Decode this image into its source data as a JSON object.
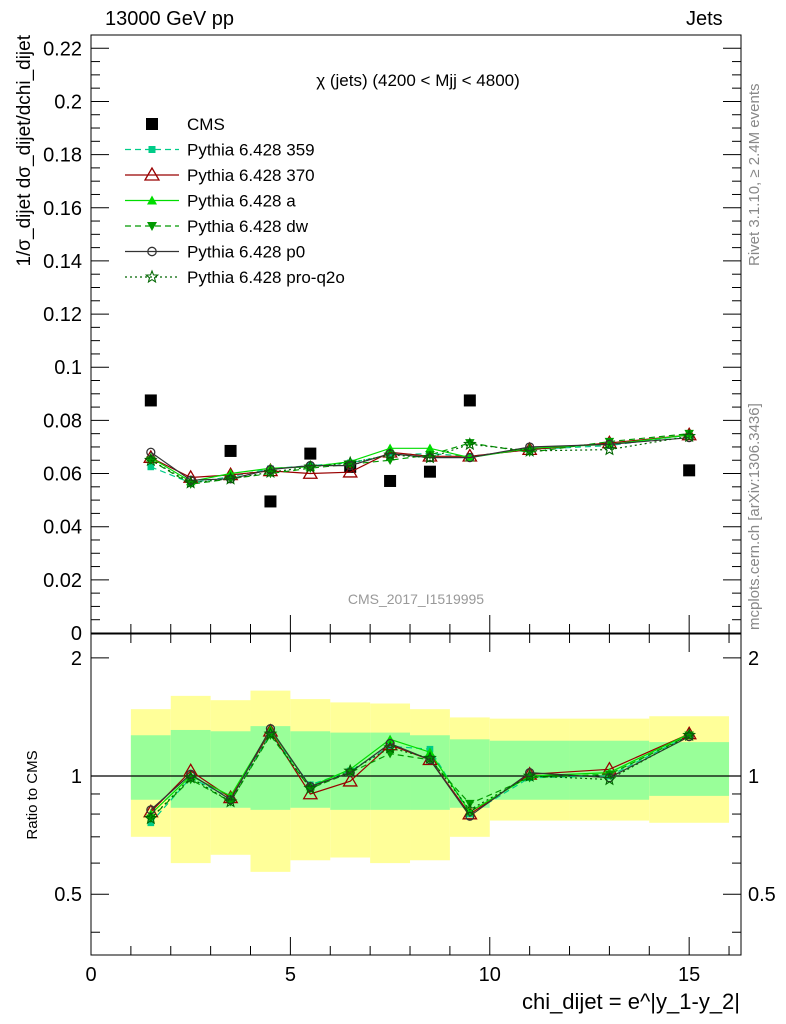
{
  "header": {
    "left_title": "13000 GeV pp",
    "right_title": "Jets"
  },
  "side_labels": {
    "rivet": "Rivet 3.1.10, ≥ 2.4M events",
    "mcplots": "mcplots.cern.ch [arXiv:1306.3436]"
  },
  "colors": {
    "cms": "#000000",
    "359": "#00cc88",
    "370": "#990000",
    "a": "#00dd00",
    "dw": "#009900",
    "p0": "#333333",
    "pro_q2o": "#006600",
    "band_inner": "#99ff99",
    "band_outer": "#ffff99"
  },
  "chart_data": [
    {
      "type": "scatter",
      "panel": "main",
      "title": "χ (jets) (4200 < Mjj < 4800)",
      "watermark": "CMS_2017_I1519995",
      "ylabel": "1/σ_dijet dσ_dijet/dchi_dijet",
      "xlim": [
        0,
        16.3
      ],
      "ylim": [
        0,
        0.225
      ],
      "yticks": [
        "0",
        "0.02",
        "0.04",
        "0.06",
        "0.08",
        "0.1",
        "0.12",
        "0.14",
        "0.16",
        "0.18",
        "0.2",
        "0.22"
      ],
      "legend_position": "top-left",
      "x": [
        1.5,
        2.5,
        3.5,
        4.5,
        5.5,
        6.5,
        7.5,
        8.5,
        9.5,
        11.0,
        13.0,
        15.0
      ],
      "x_edges": [
        1,
        2,
        3,
        4,
        5,
        6,
        7,
        8,
        9,
        10,
        12,
        14,
        16
      ],
      "series": [
        {
          "key": "cms",
          "name": "CMS",
          "marker": "square",
          "line": "none",
          "values": [
            0.0875,
            null,
            0.0685,
            0.0495,
            0.0675,
            0.0625,
            0.0572,
            0.0607,
            0.0875,
            null,
            null,
            0.0612
          ]
        },
        {
          "key": "359",
          "name": "Pythia 6.428 359",
          "marker": "square-small",
          "line": "dashed",
          "values": [
            0.0625,
            0.0565,
            0.0588,
            0.0618,
            0.063,
            0.064,
            0.067,
            0.0675,
            0.0665,
            0.069,
            0.0705,
            0.0745
          ]
        },
        {
          "key": "370",
          "name": "Pythia 6.428 370",
          "marker": "triangle-open",
          "line": "solid",
          "values": [
            0.066,
            0.0585,
            0.0595,
            0.061,
            0.06,
            0.0605,
            0.068,
            0.0665,
            0.0665,
            0.069,
            0.0715,
            0.0745
          ]
        },
        {
          "key": "a",
          "name": "Pythia 6.428 a",
          "marker": "triangle",
          "line": "solid",
          "values": [
            0.066,
            0.057,
            0.06,
            0.062,
            0.0625,
            0.0645,
            0.0695,
            0.0695,
            0.066,
            0.0695,
            0.071,
            0.0745
          ]
        },
        {
          "key": "dw",
          "name": "Pythia 6.428 dw",
          "marker": "triangle-down",
          "line": "dashed",
          "values": [
            0.065,
            0.056,
            0.058,
            0.06,
            0.062,
            0.0635,
            0.065,
            0.067,
            0.0715,
            0.068,
            0.072,
            0.075
          ]
        },
        {
          "key": "p0",
          "name": "Pythia 6.428 p0",
          "marker": "circle-open",
          "line": "solid",
          "values": [
            0.068,
            0.0575,
            0.058,
            0.0615,
            0.063,
            0.063,
            0.0675,
            0.066,
            0.066,
            0.07,
            0.071,
            0.0735
          ]
        },
        {
          "key": "pro_q2o",
          "name": "Pythia 6.428 pro-q2o",
          "marker": "star",
          "line": "dotted",
          "values": [
            0.065,
            0.0565,
            0.058,
            0.0605,
            0.0625,
            0.064,
            0.067,
            0.066,
            0.071,
            0.0685,
            0.069,
            0.074
          ]
        }
      ]
    },
    {
      "type": "line",
      "panel": "ratio",
      "ylabel": "Ratio to CMS",
      "xlabel": "chi_dijet = e^|y_1-y_2|",
      "xlim": [
        0,
        16.3
      ],
      "ylim": [
        0.35,
        2.3
      ],
      "yticks": [
        "0.5",
        "1",
        "2"
      ],
      "xticks": [
        "0",
        "5",
        "10",
        "15"
      ],
      "x_edges": [
        1,
        2,
        3,
        4,
        5,
        6,
        7,
        8,
        9,
        10,
        12,
        14,
        16
      ],
      "band_inner": {
        "low": [
          0.87,
          0.83,
          0.83,
          0.82,
          0.83,
          0.82,
          0.82,
          0.82,
          0.83,
          0.87,
          0.87,
          0.89
        ],
        "high": [
          1.27,
          1.31,
          1.3,
          1.34,
          1.3,
          1.29,
          1.29,
          1.27,
          1.24,
          1.23,
          1.23,
          1.22
        ]
      },
      "band_outer": {
        "low": [
          0.7,
          0.6,
          0.63,
          0.57,
          0.61,
          0.62,
          0.6,
          0.61,
          0.7,
          0.77,
          0.77,
          0.76
        ],
        "high": [
          1.48,
          1.6,
          1.56,
          1.65,
          1.57,
          1.54,
          1.53,
          1.48,
          1.41,
          1.4,
          1.4,
          1.42
        ]
      },
      "x": [
        1.5,
        2.5,
        3.5,
        4.5,
        5.5,
        6.5,
        7.5,
        8.5,
        9.5,
        11.0,
        13.0,
        15.0
      ],
      "series": [
        {
          "key": "359",
          "values": [
            0.76,
            0.99,
            0.88,
            1.28,
            0.95,
            1.03,
            1.19,
            1.17,
            0.8,
            0.99,
            1.0,
            1.27
          ]
        },
        {
          "key": "370",
          "values": [
            0.81,
            1.03,
            0.88,
            1.3,
            0.9,
            0.97,
            1.2,
            1.1,
            0.8,
            1.01,
            1.04,
            1.28
          ]
        },
        {
          "key": "a",
          "values": [
            0.8,
            1.0,
            0.89,
            1.31,
            0.94,
            1.04,
            1.24,
            1.15,
            0.81,
            1.0,
            1.02,
            1.28
          ]
        },
        {
          "key": "dw",
          "values": [
            0.78,
            0.98,
            0.86,
            1.27,
            0.93,
            1.02,
            1.14,
            1.1,
            0.85,
            0.99,
            1.01,
            1.27
          ]
        },
        {
          "key": "p0",
          "values": [
            0.82,
            1.01,
            0.87,
            1.32,
            0.94,
            1.02,
            1.21,
            1.1,
            0.79,
            1.02,
            0.99,
            1.26
          ]
        },
        {
          "key": "pro_q2o",
          "values": [
            0.78,
            0.99,
            0.86,
            1.28,
            0.93,
            1.03,
            1.18,
            1.11,
            0.82,
            1.0,
            0.98,
            1.27
          ]
        }
      ]
    }
  ]
}
